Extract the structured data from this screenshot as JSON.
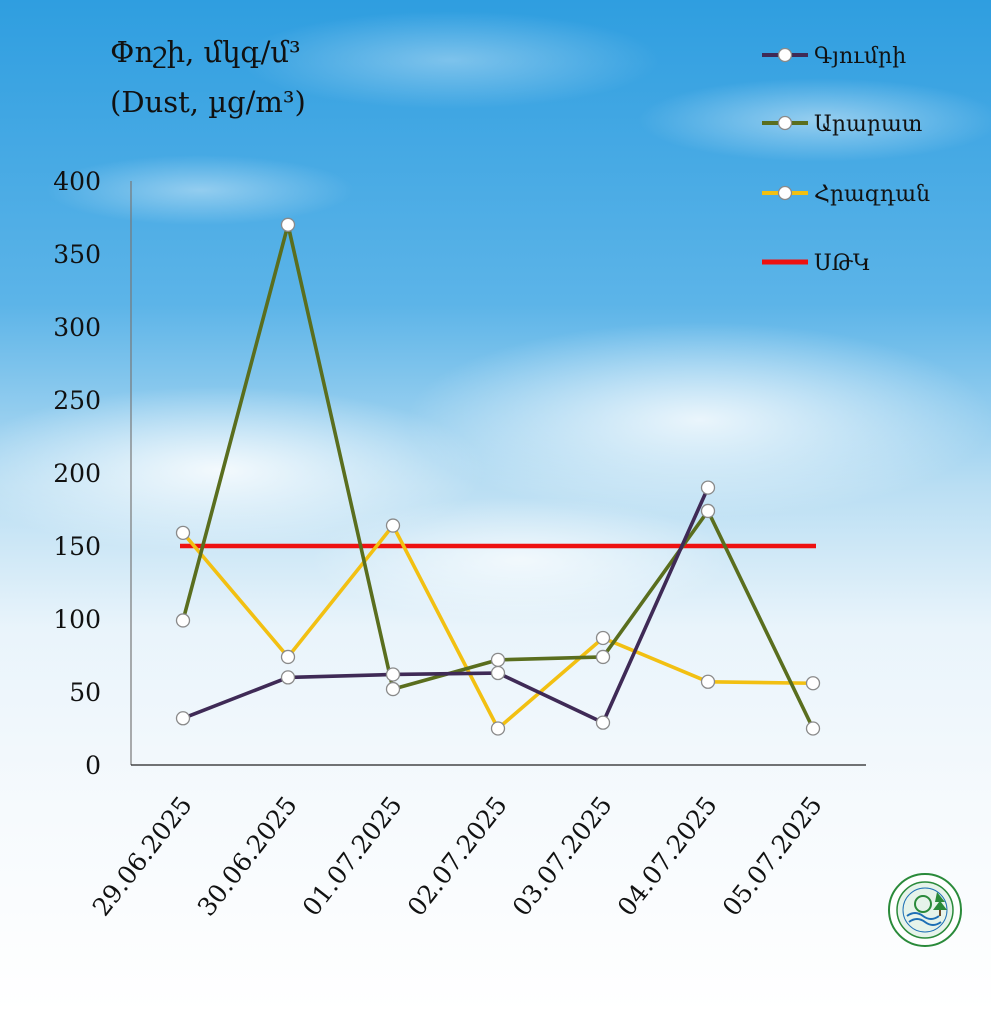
{
  "chart_data": {
    "type": "line",
    "title": "Փոշի, մկգ/մ³",
    "subtitle": "(Dust, µg/m³)",
    "categories": [
      "29.06.2025",
      "30.06.2025",
      "01.07.2025",
      "02.07.2025",
      "03.07.2025",
      "04.07.2025",
      "05.07.2025"
    ],
    "ylim": [
      0,
      400
    ],
    "yticks": [
      0,
      50,
      100,
      150,
      200,
      250,
      300,
      350,
      400
    ],
    "grid": false,
    "legend_position": "top-right",
    "series": [
      {
        "name": "Գյումրի",
        "color": "#3f2a56",
        "marker": true,
        "values": [
          32,
          60,
          62,
          63,
          29,
          190,
          null
        ]
      },
      {
        "name": "Արարատ",
        "color": "#5a6e1e",
        "marker": true,
        "values": [
          99,
          370,
          52,
          72,
          74,
          174,
          25
        ]
      },
      {
        "name": "Հրազդան",
        "color": "#f2c012",
        "marker": true,
        "values": [
          159,
          74,
          164,
          25,
          87,
          57,
          56
        ]
      },
      {
        "name": "ՍԹԿ",
        "color": "#ee1111",
        "marker": false,
        "values": [
          150,
          150,
          150,
          150,
          150,
          150,
          150
        ]
      }
    ]
  },
  "logo": {
    "name": "environmental-monitoring-center-logo"
  }
}
